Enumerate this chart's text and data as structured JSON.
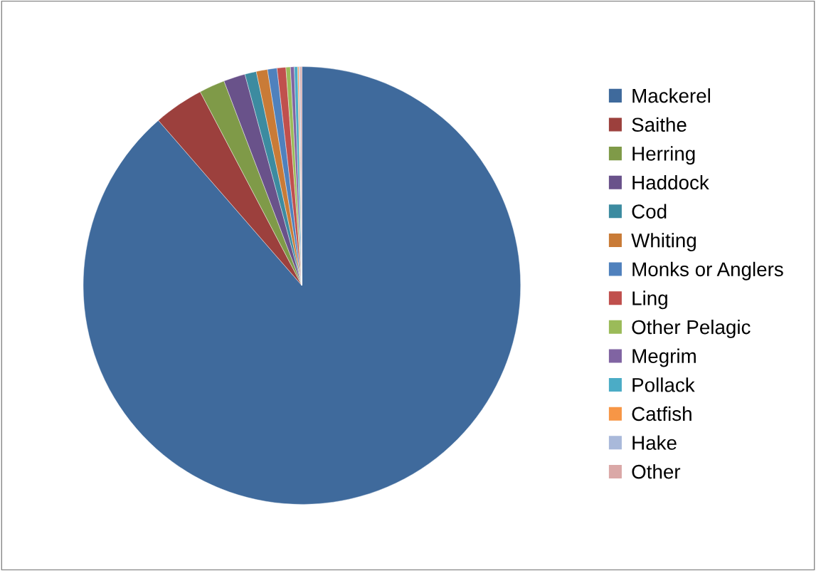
{
  "chart_data": {
    "type": "pie",
    "legend": "right",
    "categories": [
      "Mackerel",
      "Saithe",
      "Herring",
      "Haddock",
      "Cod",
      "Whiting",
      "Monks or Anglers",
      "Ling",
      "Other Pelagic",
      "Megrim",
      "Pollack",
      "Catfish",
      "Hake",
      "Other"
    ],
    "values": [
      88.6,
      3.7,
      1.9,
      1.6,
      0.85,
      0.83,
      0.7,
      0.65,
      0.33,
      0.28,
      0.25,
      0.09,
      0.09,
      0.13
    ],
    "colors": [
      "#3f6a9c",
      "#9c403d",
      "#7f9a48",
      "#69528a",
      "#3c8ba0",
      "#c97b37",
      "#4f81bd",
      "#c0504d",
      "#9bbb59",
      "#8064a2",
      "#4bacc6",
      "#f79646",
      "#a9b9da",
      "#daa8a7"
    ]
  }
}
